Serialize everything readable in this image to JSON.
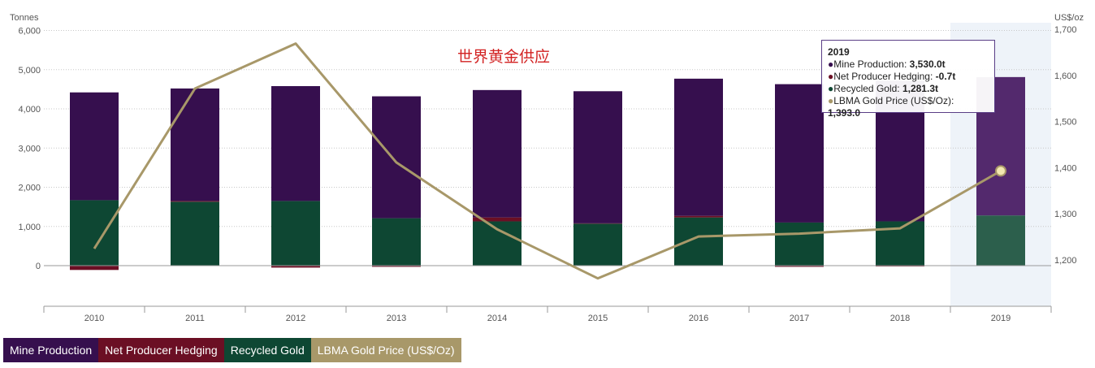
{
  "chart_data": {
    "type": "bar",
    "stacked": true,
    "title": "世界黄金供应",
    "y_left_label": "Tonnes",
    "y_right_label": "US$/oz",
    "y_left_range": [
      -1000,
      6000
    ],
    "y_left_ticks": [
      "6,000",
      "5,000",
      "4,000",
      "3,000",
      "2,000",
      "1,000",
      "0"
    ],
    "y_left_tick_values": [
      6000,
      5000,
      4000,
      3000,
      2000,
      1000,
      0
    ],
    "y_right_range": [
      1150,
      1700
    ],
    "y_right_ticks": [
      "1,700",
      "1,600",
      "1,500",
      "1,400",
      "1,300",
      "1,200"
    ],
    "y_right_tick_values": [
      1700,
      1600,
      1500,
      1400,
      1300,
      1200
    ],
    "categories": [
      "2010",
      "2011",
      "2012",
      "2013",
      "2014",
      "2015",
      "2016",
      "2017",
      "2018",
      "2019"
    ],
    "highlighted_category": "2019",
    "series": [
      {
        "name": "Mine Production",
        "color": "#360f4e",
        "highlight_color": "#53296d",
        "values": [
          2750,
          2870,
          2930,
          3110,
          3250,
          3370,
          3500,
          3530,
          3590,
          3530
        ]
      },
      {
        "name": "Net Producer Hedging",
        "color": "#6b0f24",
        "highlight_color": "#7a1f33",
        "values": [
          -110,
          20,
          -50,
          -30,
          100,
          10,
          40,
          -30,
          -20,
          -0.7
        ]
      },
      {
        "name": "Recycled Gold",
        "color": "#0e4733",
        "highlight_color": "#2c5f4c",
        "values": [
          1670,
          1630,
          1650,
          1210,
          1130,
          1070,
          1230,
          1100,
          1130,
          1281.3
        ]
      },
      {
        "name": "LBMA Gold Price (US$/Oz)",
        "type": "line",
        "axis": "right",
        "color": "#a89869",
        "values": [
          1224.5,
          1571.5,
          1669.0,
          1411.2,
          1266.4,
          1160.1,
          1250.8,
          1257.1,
          1268.5,
          1393.0
        ]
      }
    ]
  },
  "legend": [
    {
      "label": "Mine Production",
      "color": "#360f4e"
    },
    {
      "label": "Net Producer Hedging",
      "color": "#6b0f24"
    },
    {
      "label": "Recycled Gold",
      "color": "#0e4733"
    },
    {
      "label": "LBMA Gold Price (US$/Oz)",
      "color": "#a89869"
    }
  ],
  "tooltip": {
    "year": "2019",
    "rows": [
      {
        "label": "Mine Production: ",
        "value": "3,530.0t",
        "color": "#360f4e"
      },
      {
        "label": "Net Producer Hedging: ",
        "value": "-0.7t",
        "color": "#6b0f24"
      },
      {
        "label": "Recycled Gold: ",
        "value": "1,281.3t",
        "color": "#0e4733"
      },
      {
        "label": "LBMA Gold Price (US$/Oz): ",
        "value": "1,393.0",
        "color": "#a89869"
      }
    ]
  }
}
